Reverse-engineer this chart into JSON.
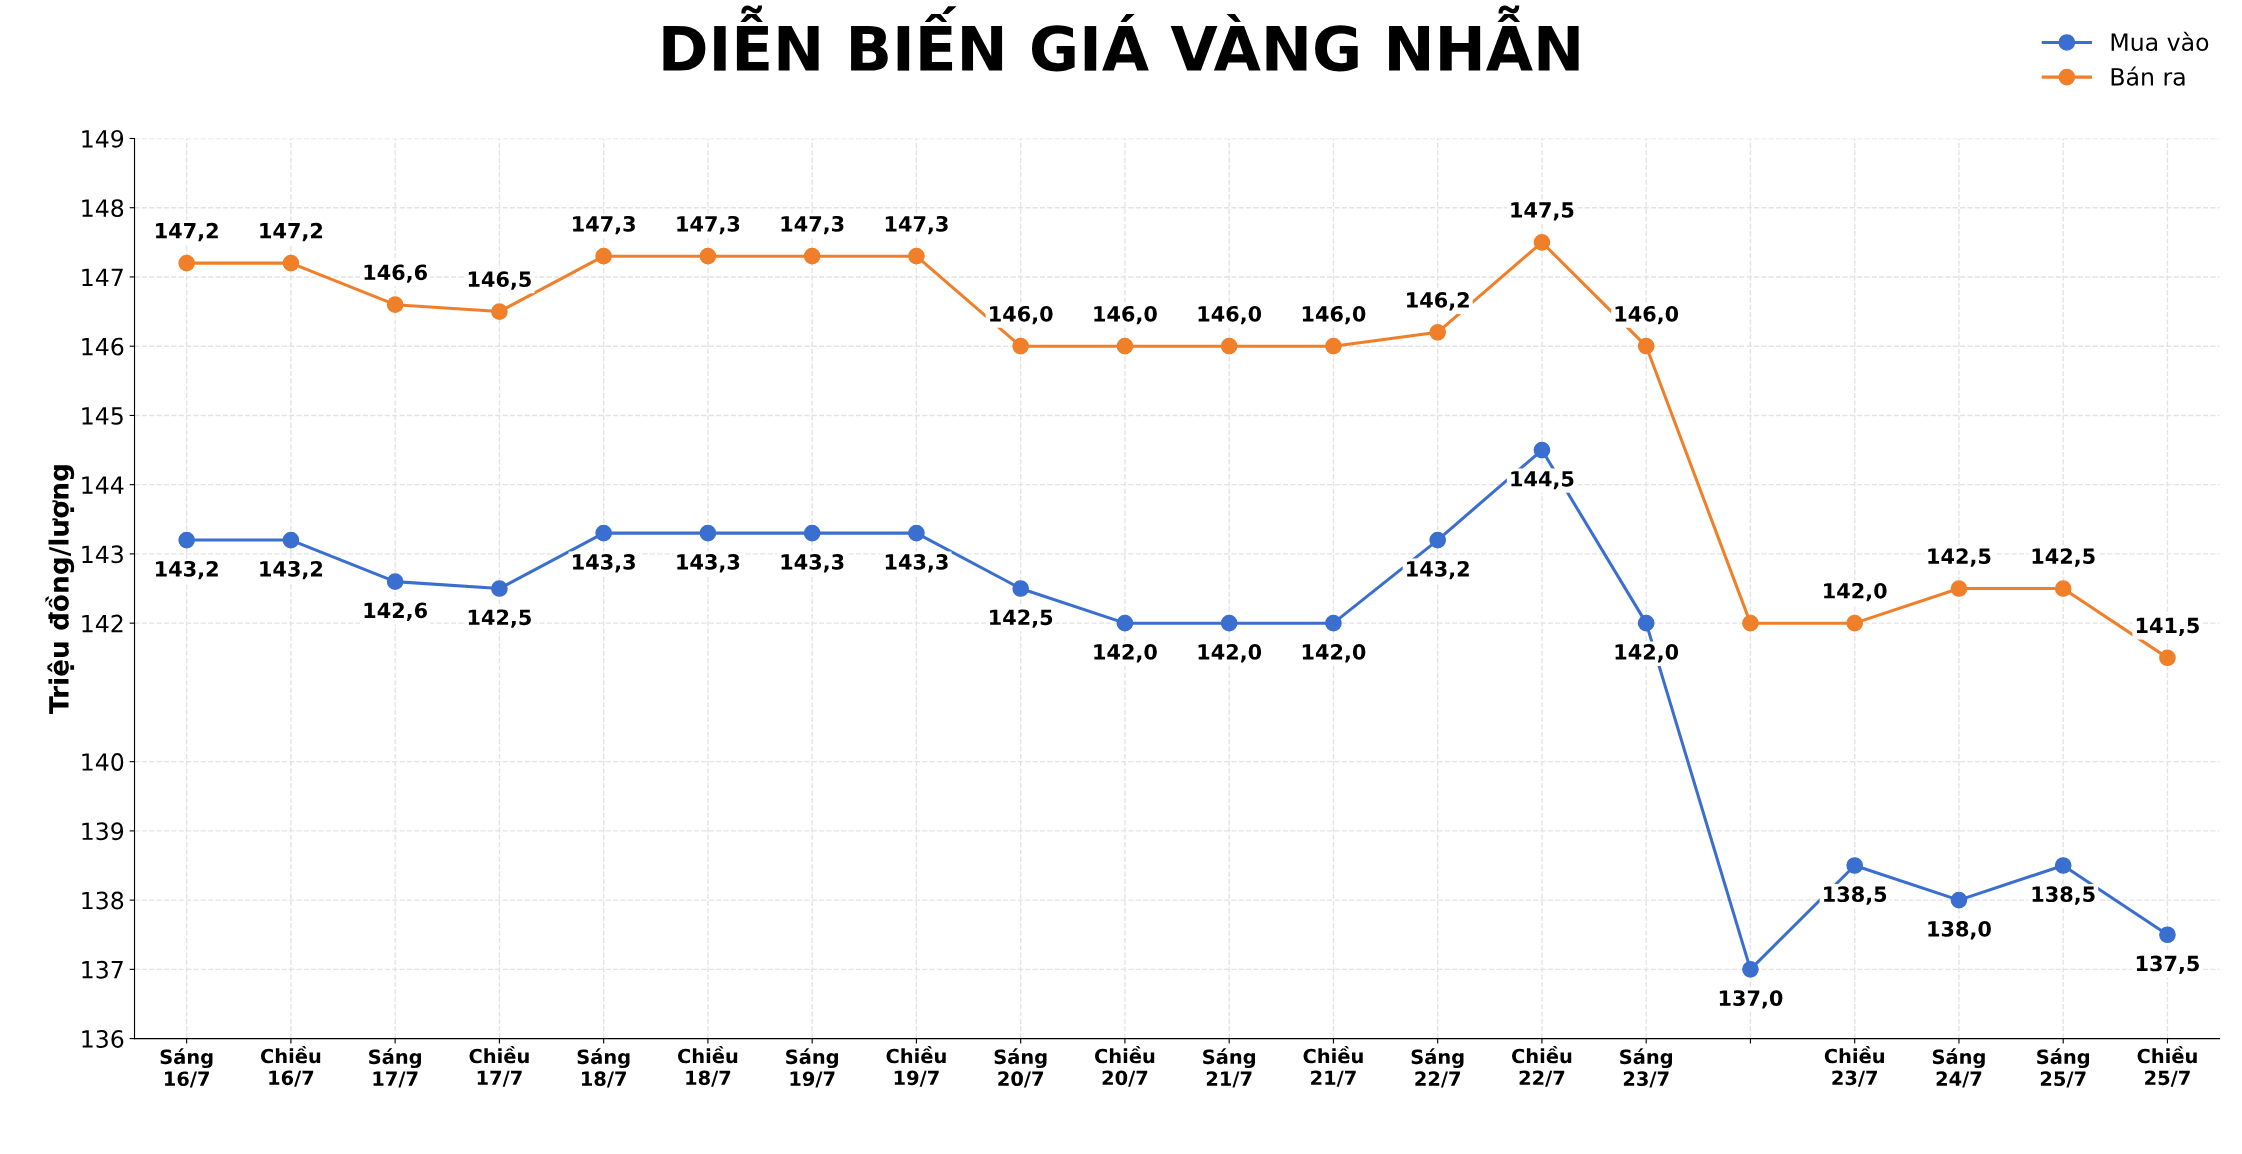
{
  "chart_data": {
    "type": "line",
    "title": "DIỄN BIẾN GIÁ VÀNG NHẪN",
    "ylabel": "Triệu đồng/lượng",
    "categories": [
      "Sáng\n16/7",
      "Chiều\n16/7",
      "Sáng\n17/7",
      "Chiều\n17/7",
      "Sáng\n18/7",
      "Chiều\n18/7",
      "Sáng\n19/7",
      "Chiều\n19/7",
      "Sáng\n20/7",
      "Chiều\n20/7",
      "Sáng\n21/7",
      "Chiều\n21/7",
      "Sáng\n22/7",
      "Chiều\n22/7",
      "Sáng\n23/7",
      null,
      "Chiều\n23/7",
      "Sáng\n24/7",
      "Sáng\n25/7",
      "Chiều\n25/7"
    ],
    "series": [
      {
        "name": "Mua vào",
        "color": "#3a6fd0",
        "values": [
          143.2,
          143.2,
          142.6,
          142.5,
          143.3,
          143.3,
          143.3,
          143.3,
          142.5,
          142.0,
          142.0,
          142.0,
          143.2,
          144.5,
          142.0,
          137.0,
          138.5,
          138.0,
          138.5,
          137.5
        ],
        "value_labels": [
          "143,2",
          "143,2",
          "142,6",
          "142,5",
          "143,3",
          "143,3",
          "143,3",
          "143,3",
          "142,5",
          "142,0",
          "142,0",
          "142,0",
          "143,2",
          "144,5",
          "142,0",
          "137,0",
          "138,5",
          "138,0",
          "138,5",
          "137,5"
        ]
      },
      {
        "name": "Bán ra",
        "color": "#f07f2a",
        "values": [
          147.2,
          147.2,
          146.6,
          146.5,
          147.3,
          147.3,
          147.3,
          147.3,
          146.0,
          146.0,
          146.0,
          146.0,
          146.2,
          147.5,
          146.0,
          142.0,
          142.0,
          142.5,
          142.5,
          141.5
        ],
        "value_labels": [
          "147,2",
          "147,2",
          "146,6",
          "146,5",
          "147,3",
          "147,3",
          "147,3",
          "147,3",
          "146,0",
          "146,0",
          "146,0",
          "146,0",
          "146,2",
          "147,5",
          "146,0",
          null,
          "142,0",
          "142,5",
          "142,5",
          "141,5"
        ]
      }
    ],
    "ylim": [
      136,
      149
    ],
    "yticks": [
      136,
      137,
      138,
      139,
      140,
      142,
      143,
      144,
      145,
      146,
      147,
      148,
      149
    ],
    "grid": true,
    "legend": "top right",
    "marker": "circle",
    "line_style": "solid"
  }
}
